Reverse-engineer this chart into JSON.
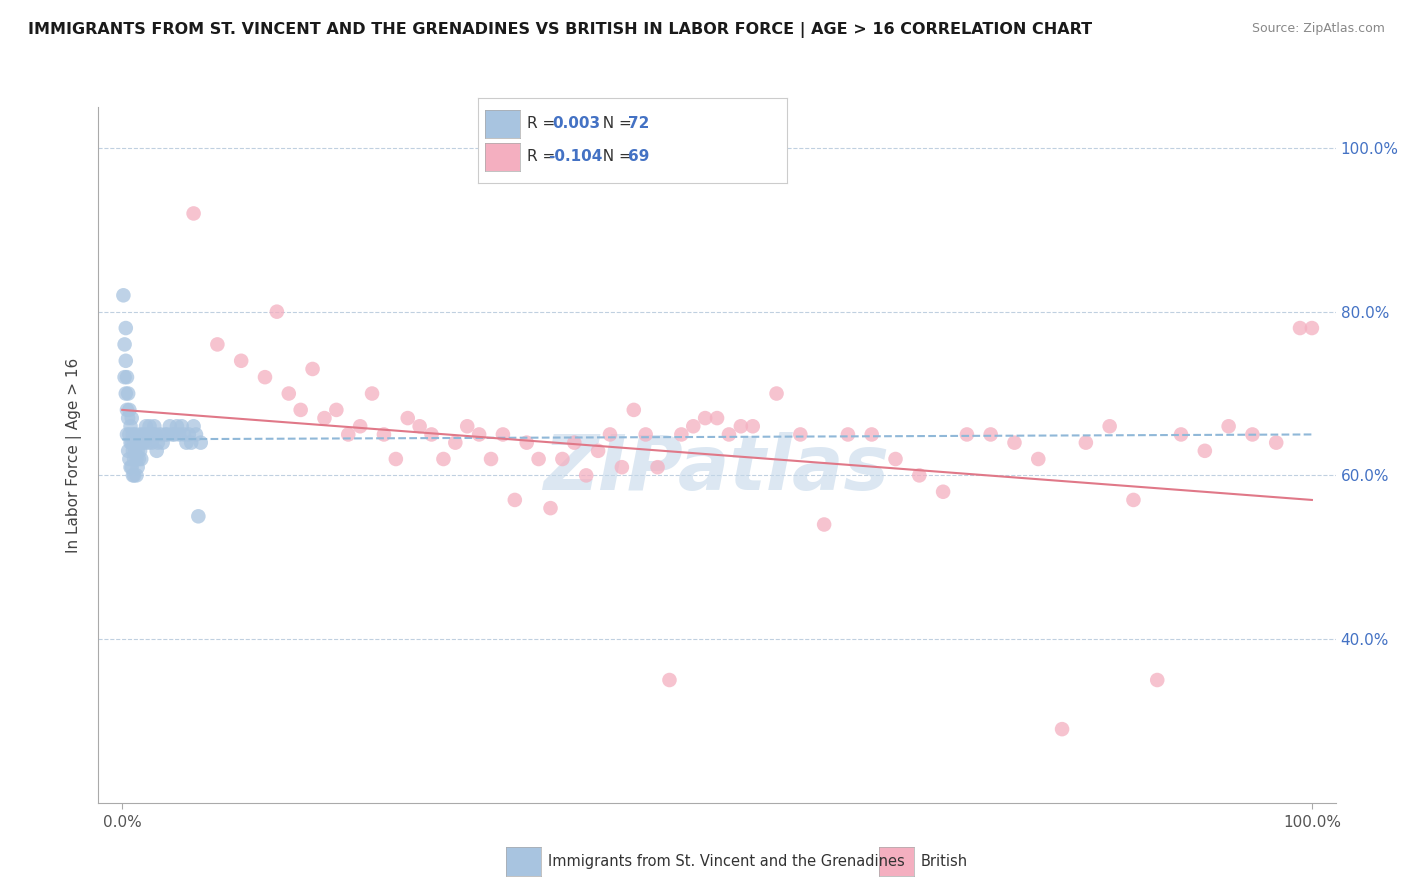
{
  "title": "IMMIGRANTS FROM ST. VINCENT AND THE GRENADINES VS BRITISH IN LABOR FORCE | AGE > 16 CORRELATION CHART",
  "source": "Source: ZipAtlas.com",
  "ylabel": "In Labor Force | Age > 16",
  "color_blue": "#a8c4e0",
  "color_pink": "#f4afc0",
  "line_blue_color": "#90b8d8",
  "line_pink_color": "#e07888",
  "watermark": "ZIPatlas",
  "legend1_label": "R =  0.003   N = 72",
  "legend2_label": "R = -0.104   N = 69",
  "legend_num_color": "#4472c4",
  "right_tick_color": "#4472c4",
  "blue_scatter_x": [
    0.001,
    0.002,
    0.002,
    0.003,
    0.003,
    0.003,
    0.004,
    0.004,
    0.004,
    0.005,
    0.005,
    0.005,
    0.006,
    0.006,
    0.006,
    0.007,
    0.007,
    0.007,
    0.008,
    0.008,
    0.008,
    0.009,
    0.009,
    0.009,
    0.01,
    0.01,
    0.01,
    0.011,
    0.011,
    0.012,
    0.012,
    0.012,
    0.013,
    0.013,
    0.014,
    0.014,
    0.015,
    0.015,
    0.016,
    0.016,
    0.017,
    0.018,
    0.019,
    0.02,
    0.021,
    0.022,
    0.023,
    0.024,
    0.025,
    0.026,
    0.027,
    0.028,
    0.029,
    0.03,
    0.032,
    0.034,
    0.036,
    0.038,
    0.04,
    0.042,
    0.044,
    0.046,
    0.048,
    0.05,
    0.052,
    0.054,
    0.056,
    0.058,
    0.06,
    0.062,
    0.064,
    0.066
  ],
  "blue_scatter_y": [
    0.82,
    0.76,
    0.72,
    0.78,
    0.74,
    0.7,
    0.72,
    0.68,
    0.65,
    0.7,
    0.67,
    0.63,
    0.68,
    0.65,
    0.62,
    0.66,
    0.64,
    0.61,
    0.67,
    0.64,
    0.61,
    0.65,
    0.63,
    0.6,
    0.64,
    0.62,
    0.6,
    0.65,
    0.63,
    0.64,
    0.62,
    0.6,
    0.63,
    0.61,
    0.64,
    0.62,
    0.65,
    0.63,
    0.64,
    0.62,
    0.64,
    0.65,
    0.64,
    0.66,
    0.65,
    0.64,
    0.66,
    0.65,
    0.64,
    0.65,
    0.66,
    0.65,
    0.63,
    0.64,
    0.65,
    0.64,
    0.65,
    0.65,
    0.66,
    0.65,
    0.65,
    0.66,
    0.65,
    0.66,
    0.65,
    0.64,
    0.65,
    0.64,
    0.66,
    0.65,
    0.55,
    0.64
  ],
  "pink_scatter_x": [
    0.06,
    0.08,
    0.1,
    0.12,
    0.13,
    0.14,
    0.15,
    0.16,
    0.17,
    0.18,
    0.19,
    0.2,
    0.21,
    0.22,
    0.23,
    0.24,
    0.25,
    0.26,
    0.27,
    0.28,
    0.29,
    0.3,
    0.31,
    0.32,
    0.33,
    0.34,
    0.35,
    0.36,
    0.37,
    0.38,
    0.39,
    0.4,
    0.41,
    0.42,
    0.43,
    0.44,
    0.45,
    0.46,
    0.47,
    0.48,
    0.49,
    0.5,
    0.51,
    0.52,
    0.53,
    0.55,
    0.57,
    0.59,
    0.61,
    0.63,
    0.65,
    0.67,
    0.69,
    0.71,
    0.73,
    0.75,
    0.77,
    0.79,
    0.81,
    0.83,
    0.85,
    0.87,
    0.89,
    0.91,
    0.93,
    0.95,
    0.97,
    0.99,
    1.0
  ],
  "pink_scatter_y": [
    0.92,
    0.76,
    0.74,
    0.72,
    0.8,
    0.7,
    0.68,
    0.73,
    0.67,
    0.68,
    0.65,
    0.66,
    0.7,
    0.65,
    0.62,
    0.67,
    0.66,
    0.65,
    0.62,
    0.64,
    0.66,
    0.65,
    0.62,
    0.65,
    0.57,
    0.64,
    0.62,
    0.56,
    0.62,
    0.64,
    0.6,
    0.63,
    0.65,
    0.61,
    0.68,
    0.65,
    0.61,
    0.35,
    0.65,
    0.66,
    0.67,
    0.67,
    0.65,
    0.66,
    0.66,
    0.7,
    0.65,
    0.54,
    0.65,
    0.65,
    0.62,
    0.6,
    0.58,
    0.65,
    0.65,
    0.64,
    0.62,
    0.29,
    0.64,
    0.66,
    0.57,
    0.35,
    0.65,
    0.63,
    0.66,
    0.65,
    0.64,
    0.78,
    0.78
  ],
  "xlim": [
    -0.02,
    1.02
  ],
  "ylim": [
    0.2,
    1.05
  ],
  "blue_line_x": [
    0.0,
    1.0
  ],
  "blue_line_y": [
    0.644,
    0.65
  ],
  "pink_line_x": [
    0.0,
    1.0
  ],
  "pink_line_y": [
    0.68,
    0.57
  ],
  "grid_yticks": [
    0.4,
    0.6,
    0.8,
    1.0
  ],
  "right_ytick_labels": [
    "40.0%",
    "60.0%",
    "80.0%",
    "100.0%"
  ]
}
